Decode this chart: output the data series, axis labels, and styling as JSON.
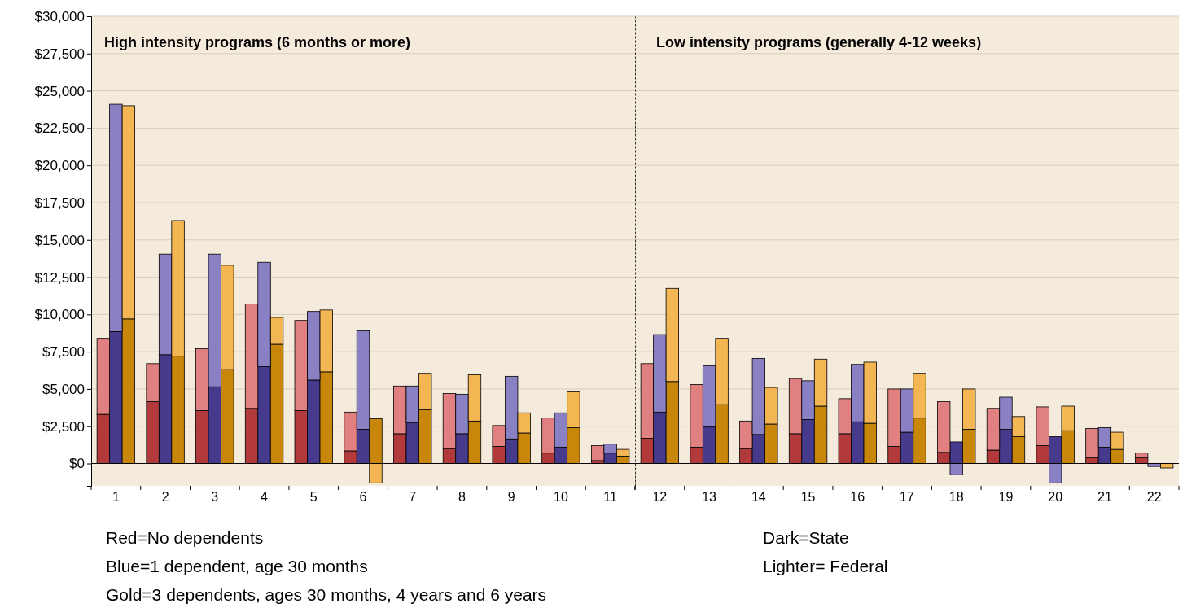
{
  "chart_data": [
    {
      "type": "bar",
      "stacked": true,
      "title": "High intensity programs (6 months or more)",
      "categories": [
        null,
        "1",
        null,
        null,
        "2",
        null,
        null,
        "3",
        null,
        null,
        "4",
        null,
        null,
        "5",
        null,
        null,
        "6",
        null,
        null,
        "7",
        null,
        null,
        "8",
        null,
        null,
        "9",
        null,
        null,
        "10",
        null,
        null,
        "11",
        null
      ],
      "series": [
        {
          "values": [
            3300,
            8850,
            9700,
            4150,
            7300,
            7200,
            3550,
            5150,
            6300,
            3700,
            6500,
            8000,
            3550,
            5600,
            6150,
            850,
            2300,
            3000,
            2000,
            2750,
            3600,
            1000,
            2000,
            2850,
            1150,
            1650,
            2050,
            700,
            1100,
            2400,
            200,
            700,
            500
          ],
          "colors": [
            "#b23a3a",
            "#453a8c",
            "#c8860a",
            "#b23a3a",
            "#453a8c",
            "#c8860a",
            "#b23a3a",
            "#453a8c",
            "#c8860a",
            "#b23a3a",
            "#453a8c",
            "#c8860a",
            "#b23a3a",
            "#453a8c",
            "#c8860a",
            "#b23a3a",
            "#453a8c",
            "#c8860a",
            "#b23a3a",
            "#453a8c",
            "#c8860a",
            "#b23a3a",
            "#453a8c",
            "#c8860a",
            "#b23a3a",
            "#453a8c",
            "#c8860a",
            "#b23a3a",
            "#453a8c",
            "#c8860a",
            "#b23a3a",
            "#453a8c",
            "#c8860a"
          ]
        },
        {
          "values": [
            5100,
            15250,
            14300,
            2550,
            6750,
            9100,
            4150,
            8900,
            7000,
            7000,
            7000,
            1800,
            6050,
            4600,
            4150,
            2600,
            6600,
            -1300,
            3200,
            2450,
            2450,
            3700,
            2650,
            3100,
            1400,
            4200,
            1350,
            2350,
            2300,
            2400,
            1000,
            600,
            450
          ],
          "colors": [
            "#e08080",
            "#8a80c4",
            "#f3b652",
            "#e08080",
            "#8a80c4",
            "#f3b652",
            "#e08080",
            "#8a80c4",
            "#f3b652",
            "#e08080",
            "#8a80c4",
            "#f3b652",
            "#e08080",
            "#8a80c4",
            "#f3b652",
            "#e08080",
            "#8a80c4",
            "#f3b652",
            "#e08080",
            "#8a80c4",
            "#f3b652",
            "#e08080",
            "#8a80c4",
            "#f3b652",
            "#e08080",
            "#8a80c4",
            "#f3b652",
            "#e08080",
            "#8a80c4",
            "#f3b652",
            "#e08080",
            "#8a80c4",
            "#f3b652"
          ]
        }
      ],
      "ylim": [
        -1500,
        30000
      ],
      "yticks": [
        {
          "value": 0,
          "label": "$0"
        },
        {
          "value": 2500,
          "label": "$2,500"
        },
        {
          "value": 5000,
          "label": "$5,000"
        },
        {
          "value": 7500,
          "label": "$7,500"
        },
        {
          "value": 10000,
          "label": "$10,000"
        },
        {
          "value": 12500,
          "label": "$12,500"
        },
        {
          "value": 15000,
          "label": "$15,000"
        },
        {
          "value": 17500,
          "label": "$17,500"
        },
        {
          "value": 20000,
          "label": "$20,000"
        },
        {
          "value": 22500,
          "label": "$22,500"
        },
        {
          "value": 25000,
          "label": "$25,000"
        },
        {
          "value": 27500,
          "label": "$27,500"
        },
        {
          "value": 30000,
          "label": "$30,000"
        }
      ],
      "grid": "y",
      "annotations": [
        "Red=No dependents",
        "Blue=1 dependent, age 30 months",
        "Gold=3 dependents, ages 30 months, 4 years and 6 years"
      ]
    },
    {
      "type": "bar",
      "stacked": true,
      "title": "Low intensity programs (generally 4-12 weeks)",
      "categories": [
        null,
        "12",
        null,
        null,
        "13",
        null,
        null,
        "14",
        null,
        null,
        "15",
        null,
        null,
        "16",
        null,
        null,
        "17",
        null,
        null,
        "18",
        null,
        null,
        "19",
        null,
        null,
        "20",
        null,
        null,
        "21",
        null,
        null,
        "22",
        null
      ],
      "series": [
        {
          "values": [
            1700,
            3450,
            5500,
            1100,
            2450,
            3950,
            1000,
            1950,
            2650,
            2000,
            2950,
            3850,
            2000,
            2800,
            2700,
            1150,
            2100,
            3050,
            750,
            1450,
            2300,
            900,
            2300,
            1800,
            1200,
            1800,
            2200,
            400,
            1100,
            950,
            400,
            0,
            0
          ],
          "colors": [
            "#b23a3a",
            "#453a8c",
            "#c8860a",
            "#b23a3a",
            "#453a8c",
            "#c8860a",
            "#b23a3a",
            "#453a8c",
            "#c8860a",
            "#b23a3a",
            "#453a8c",
            "#c8860a",
            "#b23a3a",
            "#453a8c",
            "#c8860a",
            "#b23a3a",
            "#453a8c",
            "#c8860a",
            "#b23a3a",
            "#453a8c",
            "#c8860a",
            "#b23a3a",
            "#453a8c",
            "#c8860a",
            "#b23a3a",
            "#453a8c",
            "#c8860a",
            "#b23a3a",
            "#453a8c",
            "#c8860a",
            "#b23a3a",
            "#453a8c",
            "#c8860a"
          ]
        },
        {
          "values": [
            5000,
            5200,
            6250,
            4200,
            4100,
            4450,
            1850,
            5100,
            2450,
            3700,
            2600,
            3150,
            2350,
            3850,
            4100,
            3850,
            2900,
            3000,
            3400,
            -750,
            2700,
            2800,
            2150,
            1350,
            2600,
            -1300,
            1650,
            1950,
            1300,
            1150,
            300,
            -200,
            -300
          ],
          "colors": [
            "#e08080",
            "#8a80c4",
            "#f3b652",
            "#e08080",
            "#8a80c4",
            "#f3b652",
            "#e08080",
            "#8a80c4",
            "#f3b652",
            "#e08080",
            "#8a80c4",
            "#f3b652",
            "#e08080",
            "#8a80c4",
            "#f3b652",
            "#e08080",
            "#8a80c4",
            "#f3b652",
            "#e08080",
            "#8a80c4",
            "#f3b652",
            "#e08080",
            "#8a80c4",
            "#f3b652",
            "#e08080",
            "#8a80c4",
            "#f3b652",
            "#e08080",
            "#8a80c4",
            "#f3b652",
            "#e08080",
            "#8a80c4",
            "#f3b652"
          ]
        }
      ],
      "ylim": [
        -1500,
        30000
      ],
      "grid": "y",
      "tick_labels": "x",
      "yticks": [
        0,
        2500,
        5000,
        7500,
        10000,
        12500,
        15000,
        17500,
        20000,
        22500,
        25000,
        27500,
        30000
      ],
      "annotations": [
        "Dark=State",
        "Lighter= Federal"
      ]
    }
  ]
}
